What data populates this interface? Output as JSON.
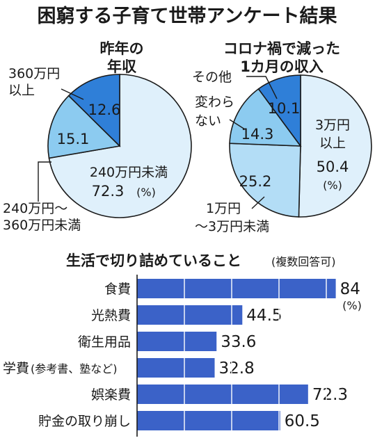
{
  "title": "困窮する子育て世帯アンケート結果",
  "colors": {
    "slice_dark": "#2f7fd8",
    "slice_mid": "#8ccbf0",
    "slice_light": "#dff0fb",
    "bar": "#3b62c8",
    "stroke": "#1a1a1a"
  },
  "chart_data": [
    {
      "type": "pie",
      "title": [
        "昨年の",
        "年収"
      ],
      "unit": "(%)",
      "slices": [
        {
          "label": "240万円未満",
          "value": 72.3,
          "color": "#dff0fb"
        },
        {
          "label": [
            "240万円〜",
            "360万円未満"
          ],
          "value": 15.1,
          "color": "#8ccbf0"
        },
        {
          "label": [
            "360万円",
            "以上"
          ],
          "value": 12.6,
          "color": "#2f7fd8"
        }
      ]
    },
    {
      "type": "pie",
      "title": [
        "コロナ禍で減った",
        "1カ月の収入"
      ],
      "unit": "(%)",
      "slices": [
        {
          "label": [
            "3万円",
            "以上"
          ],
          "value": 50.4,
          "color": "#dff0fb"
        },
        {
          "label": [
            "1万円",
            "〜3万円未満"
          ],
          "value": 25.2,
          "color": "#b3ddf6"
        },
        {
          "label": [
            "変わら",
            "ない"
          ],
          "value": 14.3,
          "color": "#8ccbf0"
        },
        {
          "label": "その他",
          "value": 10.1,
          "color": "#2f7fd8"
        }
      ]
    },
    {
      "type": "bar",
      "orientation": "horizontal",
      "title": "生活で切り詰めていること",
      "subtitle": "(複数回答可)",
      "unit": "(%)",
      "categories": [
        "食費",
        "光熱費",
        "衛生用品",
        "学費",
        "娯楽費",
        "貯金の取り崩し"
      ],
      "category_notes": [
        "",
        "",
        "",
        "(参考書、塾など)",
        "",
        ""
      ],
      "values": [
        84,
        44.5,
        33.6,
        32.8,
        72.3,
        60.5
      ],
      "xlim": [
        0,
        100
      ],
      "grid": true
    }
  ]
}
